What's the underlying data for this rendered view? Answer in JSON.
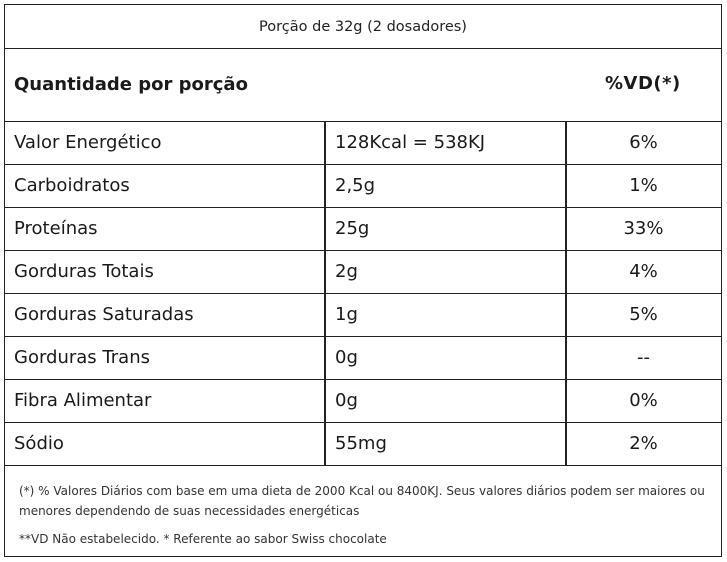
{
  "serving": "Porção de 32g (2 dosadores)",
  "header": {
    "quantity_label": "Quantidade por porção",
    "vd_label": "%VD(*)"
  },
  "rows": [
    {
      "name": "Valor Energético",
      "amount": "128Kcal = 538KJ",
      "vd": "6%"
    },
    {
      "name": "Carboidratos",
      "amount": "2,5g",
      "vd": "1%"
    },
    {
      "name": "Proteínas",
      "amount": "25g",
      "vd": "33%"
    },
    {
      "name": "Gorduras Totais",
      "amount": "2g",
      "vd": "4%"
    },
    {
      "name": "Gorduras Saturadas",
      "amount": "1g",
      "vd": "5%"
    },
    {
      "name": "Gorduras Trans",
      "amount": "0g",
      "vd": "--"
    },
    {
      "name": "Fibra Alimentar",
      "amount": "0g",
      "vd": "0%"
    },
    {
      "name": "Sódio",
      "amount": "55mg",
      "vd": "2%"
    }
  ],
  "notes": {
    "footnote_1": "(*) % Valores Diários com base em uma dieta de 2000 Kcal ou 8400KJ. Seus valores diários podem ser maiores ou menores dependendo de suas necessidades energéticas",
    "footnote_2": "**VD Não estabelecido. * Referente ao sabor Swiss chocolate"
  }
}
